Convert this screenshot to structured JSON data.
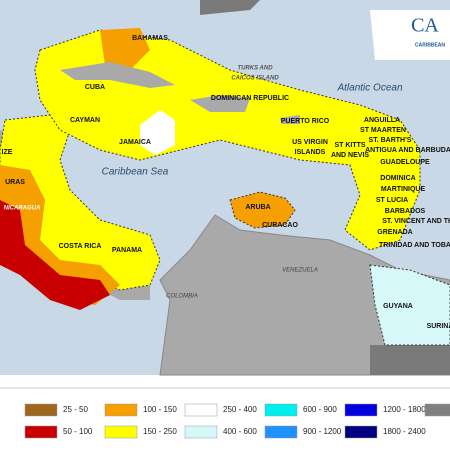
{
  "logo": {
    "short": "CA",
    "long": "CARIBBEAN"
  },
  "labels": [
    "BAHAMAS",
    "TURKS AND",
    "CAICOS ISLAND",
    "CUBA",
    "Atlantic Ocean",
    "DOMINICAN REPUBLIC",
    "CAYMAN",
    "PUERTO RICO",
    "ANGUILLA",
    "ST MAARTEN",
    "ST. BARTH'S",
    "ANTIGUA AND BARBUDA",
    "JAMAICA",
    "US VIRGIN",
    "ISLANDS",
    "ST KITTS",
    "AND NEVIS",
    "GUADELOUPE",
    "DOMINICA",
    "MARTINIQUE",
    "ST LUCIA",
    "BARBADOS",
    "ST. VINCENT AND THE",
    "GRENADA",
    "Caribbean Sea",
    "ARUBA",
    "CURACAO",
    "TRINIDAD AND TOBA",
    "VENEZUELA",
    "COSTA RICA",
    "PANAMA",
    "COLOMBIA",
    "GUYANA",
    "SURINA",
    "IZE",
    "URAS",
    "NICARAGUA"
  ],
  "legend": [
    {
      "label": "25 - 50",
      "color": "#a0661e"
    },
    {
      "label": "50 - 100",
      "color": "#c80000"
    },
    {
      "label": "100 - 150",
      "color": "#f5a000"
    },
    {
      "label": "150 - 250",
      "color": "#ffff00"
    },
    {
      "label": "250 - 400",
      "color": "#ffffff"
    },
    {
      "label": "400 - 600",
      "color": "#d6f8f8"
    },
    {
      "label": "600 - 900",
      "color": "#00eeee"
    },
    {
      "label": "900 - 1200",
      "color": "#1e90ff"
    },
    {
      "label": "1200 - 1800",
      "color": "#0000e0"
    },
    {
      "label": "1800 - 2400",
      "color": "#000080"
    },
    {
      "color": "#808080"
    }
  ]
}
